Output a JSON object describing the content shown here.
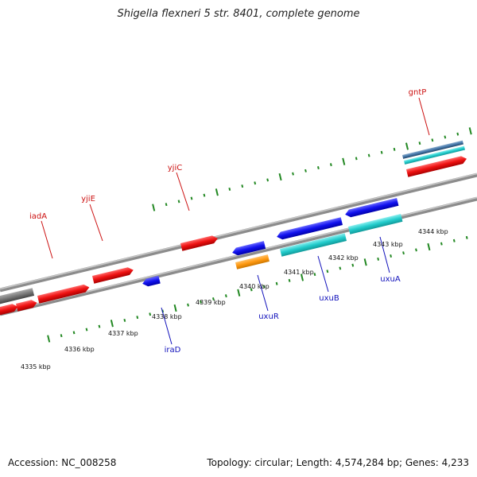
{
  "header": {
    "title": "Shigella flexneri 5 str. 8401, complete genome"
  },
  "footer": {
    "accession": "Accession: NC_008258",
    "topology": "Topology: circular; Length: 4,574,284 bp; Genes: 4,233"
  },
  "colors": {
    "forward_gene": "#ee1111",
    "reverse_gene": "#1111ee",
    "cyan_gene": "#22cccc",
    "orange_gene": "#ff9911",
    "dark_gene": "#777777",
    "steel_gene": "#4477aa",
    "backbone": "#8c8c8c",
    "tick": "#228822",
    "label_red": "#cc1111",
    "label_blue": "#1111bb"
  },
  "scale": {
    "labels": [
      "4335 kbp",
      "4336 kbp",
      "4337 kbp",
      "4338 kbp",
      "4339 kbp",
      "4340 kbp",
      "4341 kbp",
      "4342 kbp",
      "4343 kbp",
      "4344 kbp"
    ]
  },
  "gene_labels": [
    {
      "name": "iadA",
      "color": "label_red"
    },
    {
      "name": "yjiE",
      "color": "label_red"
    },
    {
      "name": "yjiC",
      "color": "label_red"
    },
    {
      "name": "gntP",
      "color": "label_red"
    },
    {
      "name": "iraD",
      "color": "label_blue"
    },
    {
      "name": "uxuR",
      "color": "label_blue"
    },
    {
      "name": "uxuB",
      "color": "label_blue"
    },
    {
      "name": "uxuA",
      "color": "label_blue"
    }
  ]
}
